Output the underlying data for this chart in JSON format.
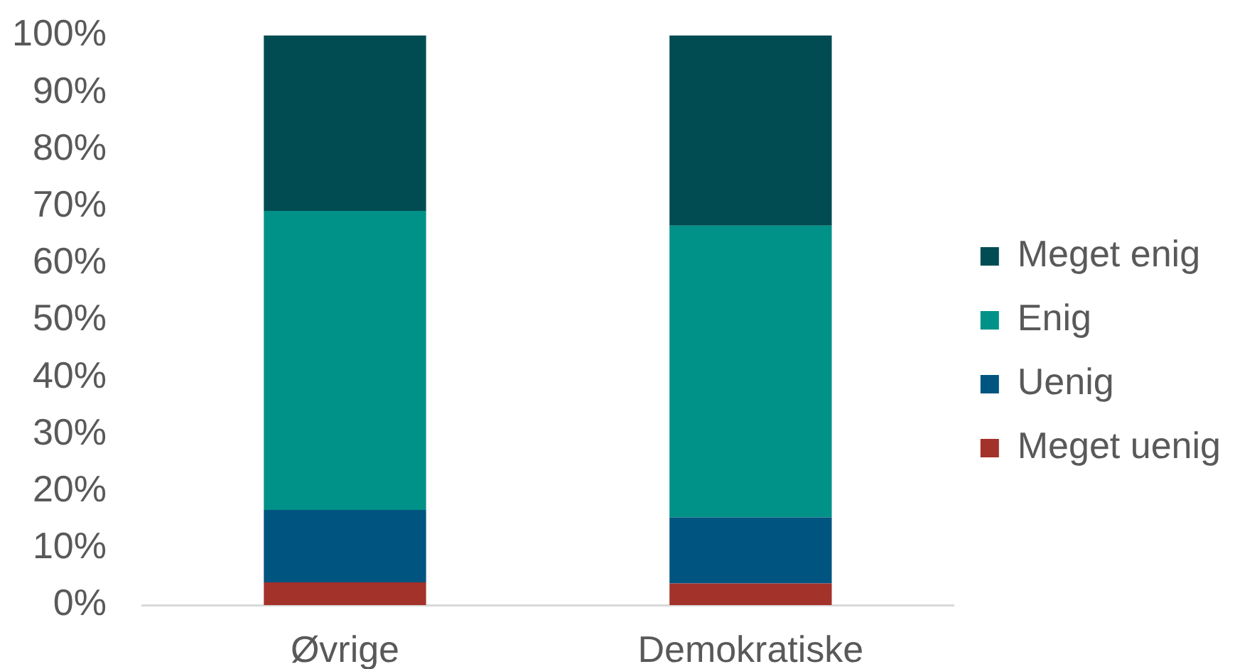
{
  "chart_data": {
    "type": "bar",
    "stacked": true,
    "categories": [
      "Øvrige",
      "Demokratiske"
    ],
    "series": [
      {
        "name": "Meget uenig",
        "color": "#a3322b",
        "values": [
          4.0,
          3.8
        ]
      },
      {
        "name": "Uenig",
        "color": "#005580",
        "values": [
          12.7,
          11.6
        ]
      },
      {
        "name": "Enig",
        "color": "#009188",
        "values": [
          52.5,
          51.2
        ]
      },
      {
        "name": "Meget enig",
        "color": "#004c52",
        "values": [
          30.8,
          33.4
        ]
      }
    ],
    "ylim": [
      0,
      100
    ],
    "yticks": [
      {
        "value": 0,
        "label": "0%"
      },
      {
        "value": 10,
        "label": "10%"
      },
      {
        "value": 20,
        "label": "20%"
      },
      {
        "value": 30,
        "label": "30%"
      },
      {
        "value": 40,
        "label": "40%"
      },
      {
        "value": 50,
        "label": "50%"
      },
      {
        "value": 60,
        "label": "60%"
      },
      {
        "value": 70,
        "label": "70%"
      },
      {
        "value": 80,
        "label": "80%"
      },
      {
        "value": 90,
        "label": "90%"
      },
      {
        "value": 100,
        "label": "100%"
      }
    ],
    "grid": false,
    "legend": "right"
  }
}
